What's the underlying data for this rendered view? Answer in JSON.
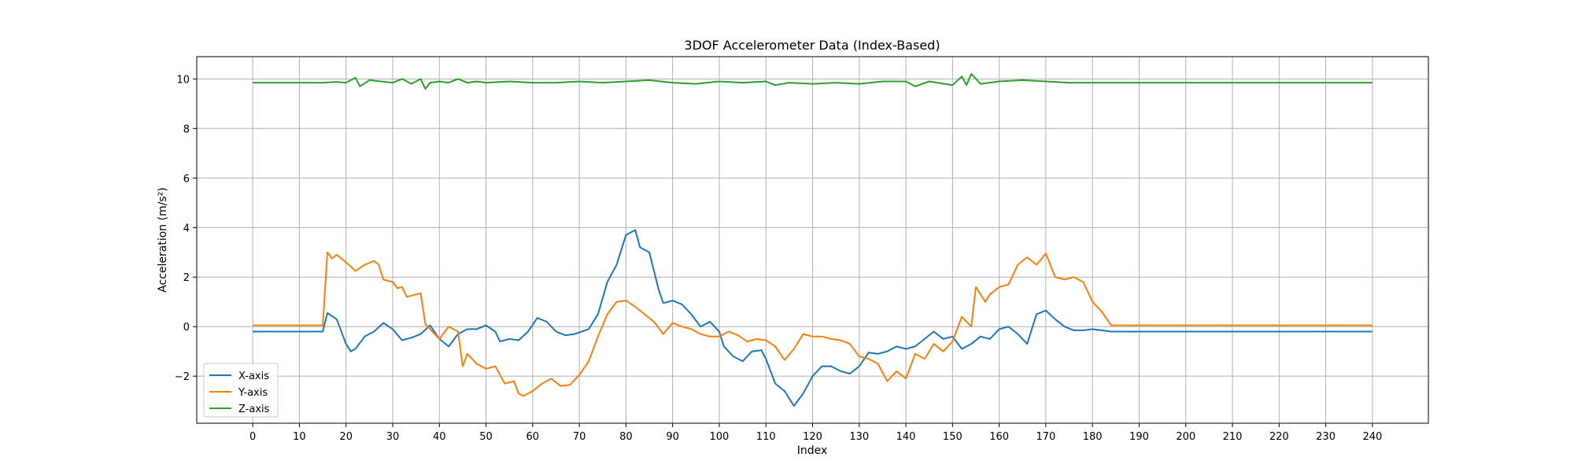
{
  "chart_data": {
    "type": "line",
    "title": "3DOF Accelerometer Data (Index-Based)",
    "xlabel": "Index",
    "ylabel": "Acceleration (m/s²)",
    "xlim": [
      -12,
      252
    ],
    "ylim": [
      -3.9,
      10.9
    ],
    "xticks": [
      0,
      10,
      20,
      30,
      40,
      50,
      60,
      70,
      80,
      90,
      100,
      110,
      120,
      130,
      140,
      150,
      160,
      170,
      180,
      190,
      200,
      210,
      220,
      230,
      240
    ],
    "yticks": [
      -2,
      0,
      2,
      4,
      6,
      8,
      10
    ],
    "grid": true,
    "legend_position": "lower-left",
    "series": [
      {
        "name": "X-axis",
        "color": "#1f77b4",
        "points": [
          [
            0,
            -0.2
          ],
          [
            5,
            -0.2
          ],
          [
            10,
            -0.2
          ],
          [
            15,
            -0.2
          ],
          [
            16,
            0.55
          ],
          [
            18,
            0.3
          ],
          [
            20,
            -0.7
          ],
          [
            21,
            -1.0
          ],
          [
            22,
            -0.9
          ],
          [
            24,
            -0.4
          ],
          [
            26,
            -0.2
          ],
          [
            28,
            0.15
          ],
          [
            30,
            -0.1
          ],
          [
            32,
            -0.55
          ],
          [
            34,
            -0.45
          ],
          [
            36,
            -0.3
          ],
          [
            38,
            0.05
          ],
          [
            40,
            -0.5
          ],
          [
            42,
            -0.8
          ],
          [
            44,
            -0.3
          ],
          [
            46,
            -0.1
          ],
          [
            48,
            -0.1
          ],
          [
            50,
            0.05
          ],
          [
            52,
            -0.2
          ],
          [
            53,
            -0.6
          ],
          [
            55,
            -0.5
          ],
          [
            57,
            -0.55
          ],
          [
            59,
            -0.2
          ],
          [
            61,
            0.35
          ],
          [
            63,
            0.2
          ],
          [
            65,
            -0.2
          ],
          [
            67,
            -0.35
          ],
          [
            69,
            -0.3
          ],
          [
            72,
            -0.1
          ],
          [
            74,
            0.5
          ],
          [
            76,
            1.8
          ],
          [
            78,
            2.5
          ],
          [
            80,
            3.7
          ],
          [
            82,
            3.9
          ],
          [
            83,
            3.2
          ],
          [
            85,
            3.0
          ],
          [
            87,
            1.5
          ],
          [
            88,
            0.95
          ],
          [
            90,
            1.05
          ],
          [
            92,
            0.9
          ],
          [
            94,
            0.5
          ],
          [
            96,
            0.0
          ],
          [
            98,
            0.2
          ],
          [
            100,
            -0.2
          ],
          [
            101,
            -0.8
          ],
          [
            103,
            -1.2
          ],
          [
            105,
            -1.4
          ],
          [
            107,
            -1.0
          ],
          [
            109,
            -0.95
          ],
          [
            110,
            -1.3
          ],
          [
            112,
            -2.3
          ],
          [
            114,
            -2.6
          ],
          [
            116,
            -3.2
          ],
          [
            118,
            -2.7
          ],
          [
            120,
            -2.0
          ],
          [
            122,
            -1.6
          ],
          [
            124,
            -1.6
          ],
          [
            126,
            -1.8
          ],
          [
            128,
            -1.9
          ],
          [
            130,
            -1.6
          ],
          [
            132,
            -1.05
          ],
          [
            134,
            -1.1
          ],
          [
            136,
            -1.0
          ],
          [
            138,
            -0.8
          ],
          [
            140,
            -0.9
          ],
          [
            142,
            -0.8
          ],
          [
            144,
            -0.5
          ],
          [
            146,
            -0.2
          ],
          [
            148,
            -0.5
          ],
          [
            150,
            -0.4
          ],
          [
            152,
            -0.9
          ],
          [
            154,
            -0.7
          ],
          [
            156,
            -0.4
          ],
          [
            158,
            -0.5
          ],
          [
            160,
            -0.1
          ],
          [
            162,
            0.0
          ],
          [
            164,
            -0.3
          ],
          [
            166,
            -0.7
          ],
          [
            168,
            0.5
          ],
          [
            170,
            0.65
          ],
          [
            172,
            0.3
          ],
          [
            174,
            0.0
          ],
          [
            176,
            -0.15
          ],
          [
            178,
            -0.15
          ],
          [
            180,
            -0.1
          ],
          [
            184,
            -0.2
          ],
          [
            200,
            -0.2
          ],
          [
            220,
            -0.2
          ],
          [
            240,
            -0.2
          ]
        ]
      },
      {
        "name": "Y-axis",
        "color": "#ff7f0e",
        "points": [
          [
            0,
            0.05
          ],
          [
            10,
            0.05
          ],
          [
            15,
            0.05
          ],
          [
            16,
            3.0
          ],
          [
            17,
            2.75
          ],
          [
            18,
            2.9
          ],
          [
            20,
            2.6
          ],
          [
            22,
            2.25
          ],
          [
            24,
            2.5
          ],
          [
            26,
            2.65
          ],
          [
            27,
            2.5
          ],
          [
            28,
            1.9
          ],
          [
            30,
            1.8
          ],
          [
            31,
            1.55
          ],
          [
            32,
            1.6
          ],
          [
            33,
            1.2
          ],
          [
            35,
            1.3
          ],
          [
            36,
            1.35
          ],
          [
            37,
            0.1
          ],
          [
            38,
            -0.1
          ],
          [
            40,
            -0.5
          ],
          [
            42,
            0.0
          ],
          [
            44,
            -0.2
          ],
          [
            45,
            -1.6
          ],
          [
            46,
            -1.1
          ],
          [
            48,
            -1.5
          ],
          [
            50,
            -1.7
          ],
          [
            52,
            -1.6
          ],
          [
            54,
            -2.3
          ],
          [
            56,
            -2.2
          ],
          [
            57,
            -2.7
          ],
          [
            58,
            -2.8
          ],
          [
            60,
            -2.6
          ],
          [
            62,
            -2.3
          ],
          [
            64,
            -2.1
          ],
          [
            66,
            -2.4
          ],
          [
            68,
            -2.35
          ],
          [
            70,
            -1.95
          ],
          [
            72,
            -1.4
          ],
          [
            74,
            -0.4
          ],
          [
            76,
            0.5
          ],
          [
            78,
            1.0
          ],
          [
            80,
            1.05
          ],
          [
            82,
            0.8
          ],
          [
            84,
            0.5
          ],
          [
            86,
            0.2
          ],
          [
            88,
            -0.3
          ],
          [
            90,
            0.15
          ],
          [
            92,
            0.0
          ],
          [
            94,
            -0.1
          ],
          [
            96,
            -0.3
          ],
          [
            98,
            -0.4
          ],
          [
            100,
            -0.4
          ],
          [
            102,
            -0.2
          ],
          [
            104,
            -0.35
          ],
          [
            106,
            -0.6
          ],
          [
            108,
            -0.5
          ],
          [
            110,
            -0.55
          ],
          [
            112,
            -0.8
          ],
          [
            114,
            -1.35
          ],
          [
            116,
            -0.9
          ],
          [
            118,
            -0.3
          ],
          [
            120,
            -0.4
          ],
          [
            122,
            -0.4
          ],
          [
            124,
            -0.5
          ],
          [
            126,
            -0.55
          ],
          [
            128,
            -0.7
          ],
          [
            130,
            -1.2
          ],
          [
            132,
            -1.3
          ],
          [
            134,
            -1.5
          ],
          [
            136,
            -2.2
          ],
          [
            138,
            -1.8
          ],
          [
            140,
            -2.1
          ],
          [
            142,
            -1.1
          ],
          [
            144,
            -1.3
          ],
          [
            146,
            -0.7
          ],
          [
            148,
            -1.0
          ],
          [
            150,
            -0.6
          ],
          [
            152,
            0.4
          ],
          [
            154,
            0.0
          ],
          [
            155,
            1.6
          ],
          [
            157,
            1.0
          ],
          [
            158,
            1.3
          ],
          [
            160,
            1.6
          ],
          [
            162,
            1.7
          ],
          [
            164,
            2.5
          ],
          [
            166,
            2.8
          ],
          [
            168,
            2.5
          ],
          [
            170,
            2.95
          ],
          [
            172,
            2.0
          ],
          [
            174,
            1.9
          ],
          [
            176,
            2.0
          ],
          [
            178,
            1.8
          ],
          [
            180,
            1.0
          ],
          [
            182,
            0.6
          ],
          [
            184,
            0.05
          ],
          [
            200,
            0.05
          ],
          [
            220,
            0.05
          ],
          [
            240,
            0.05
          ]
        ]
      },
      {
        "name": "Z-axis",
        "color": "#2ca02c",
        "points": [
          [
            0,
            9.85
          ],
          [
            15,
            9.85
          ],
          [
            18,
            9.88
          ],
          [
            20,
            9.85
          ],
          [
            22,
            10.05
          ],
          [
            23,
            9.7
          ],
          [
            25,
            9.95
          ],
          [
            30,
            9.85
          ],
          [
            32,
            10.0
          ],
          [
            34,
            9.8
          ],
          [
            36,
            10.0
          ],
          [
            37,
            9.6
          ],
          [
            38,
            9.85
          ],
          [
            40,
            9.9
          ],
          [
            42,
            9.85
          ],
          [
            44,
            10.0
          ],
          [
            46,
            9.85
          ],
          [
            48,
            9.9
          ],
          [
            50,
            9.85
          ],
          [
            55,
            9.9
          ],
          [
            60,
            9.85
          ],
          [
            65,
            9.85
          ],
          [
            70,
            9.9
          ],
          [
            75,
            9.85
          ],
          [
            80,
            9.9
          ],
          [
            85,
            9.95
          ],
          [
            90,
            9.85
          ],
          [
            95,
            9.8
          ],
          [
            100,
            9.9
          ],
          [
            105,
            9.85
          ],
          [
            110,
            9.9
          ],
          [
            112,
            9.75
          ],
          [
            115,
            9.85
          ],
          [
            120,
            9.8
          ],
          [
            125,
            9.85
          ],
          [
            130,
            9.8
          ],
          [
            135,
            9.9
          ],
          [
            140,
            9.9
          ],
          [
            142,
            9.7
          ],
          [
            145,
            9.9
          ],
          [
            150,
            9.75
          ],
          [
            152,
            10.1
          ],
          [
            153,
            9.75
          ],
          [
            154,
            10.2
          ],
          [
            156,
            9.8
          ],
          [
            160,
            9.9
          ],
          [
            165,
            9.95
          ],
          [
            170,
            9.9
          ],
          [
            175,
            9.85
          ],
          [
            180,
            9.85
          ],
          [
            200,
            9.85
          ],
          [
            220,
            9.85
          ],
          [
            240,
            9.85
          ]
        ]
      }
    ]
  }
}
